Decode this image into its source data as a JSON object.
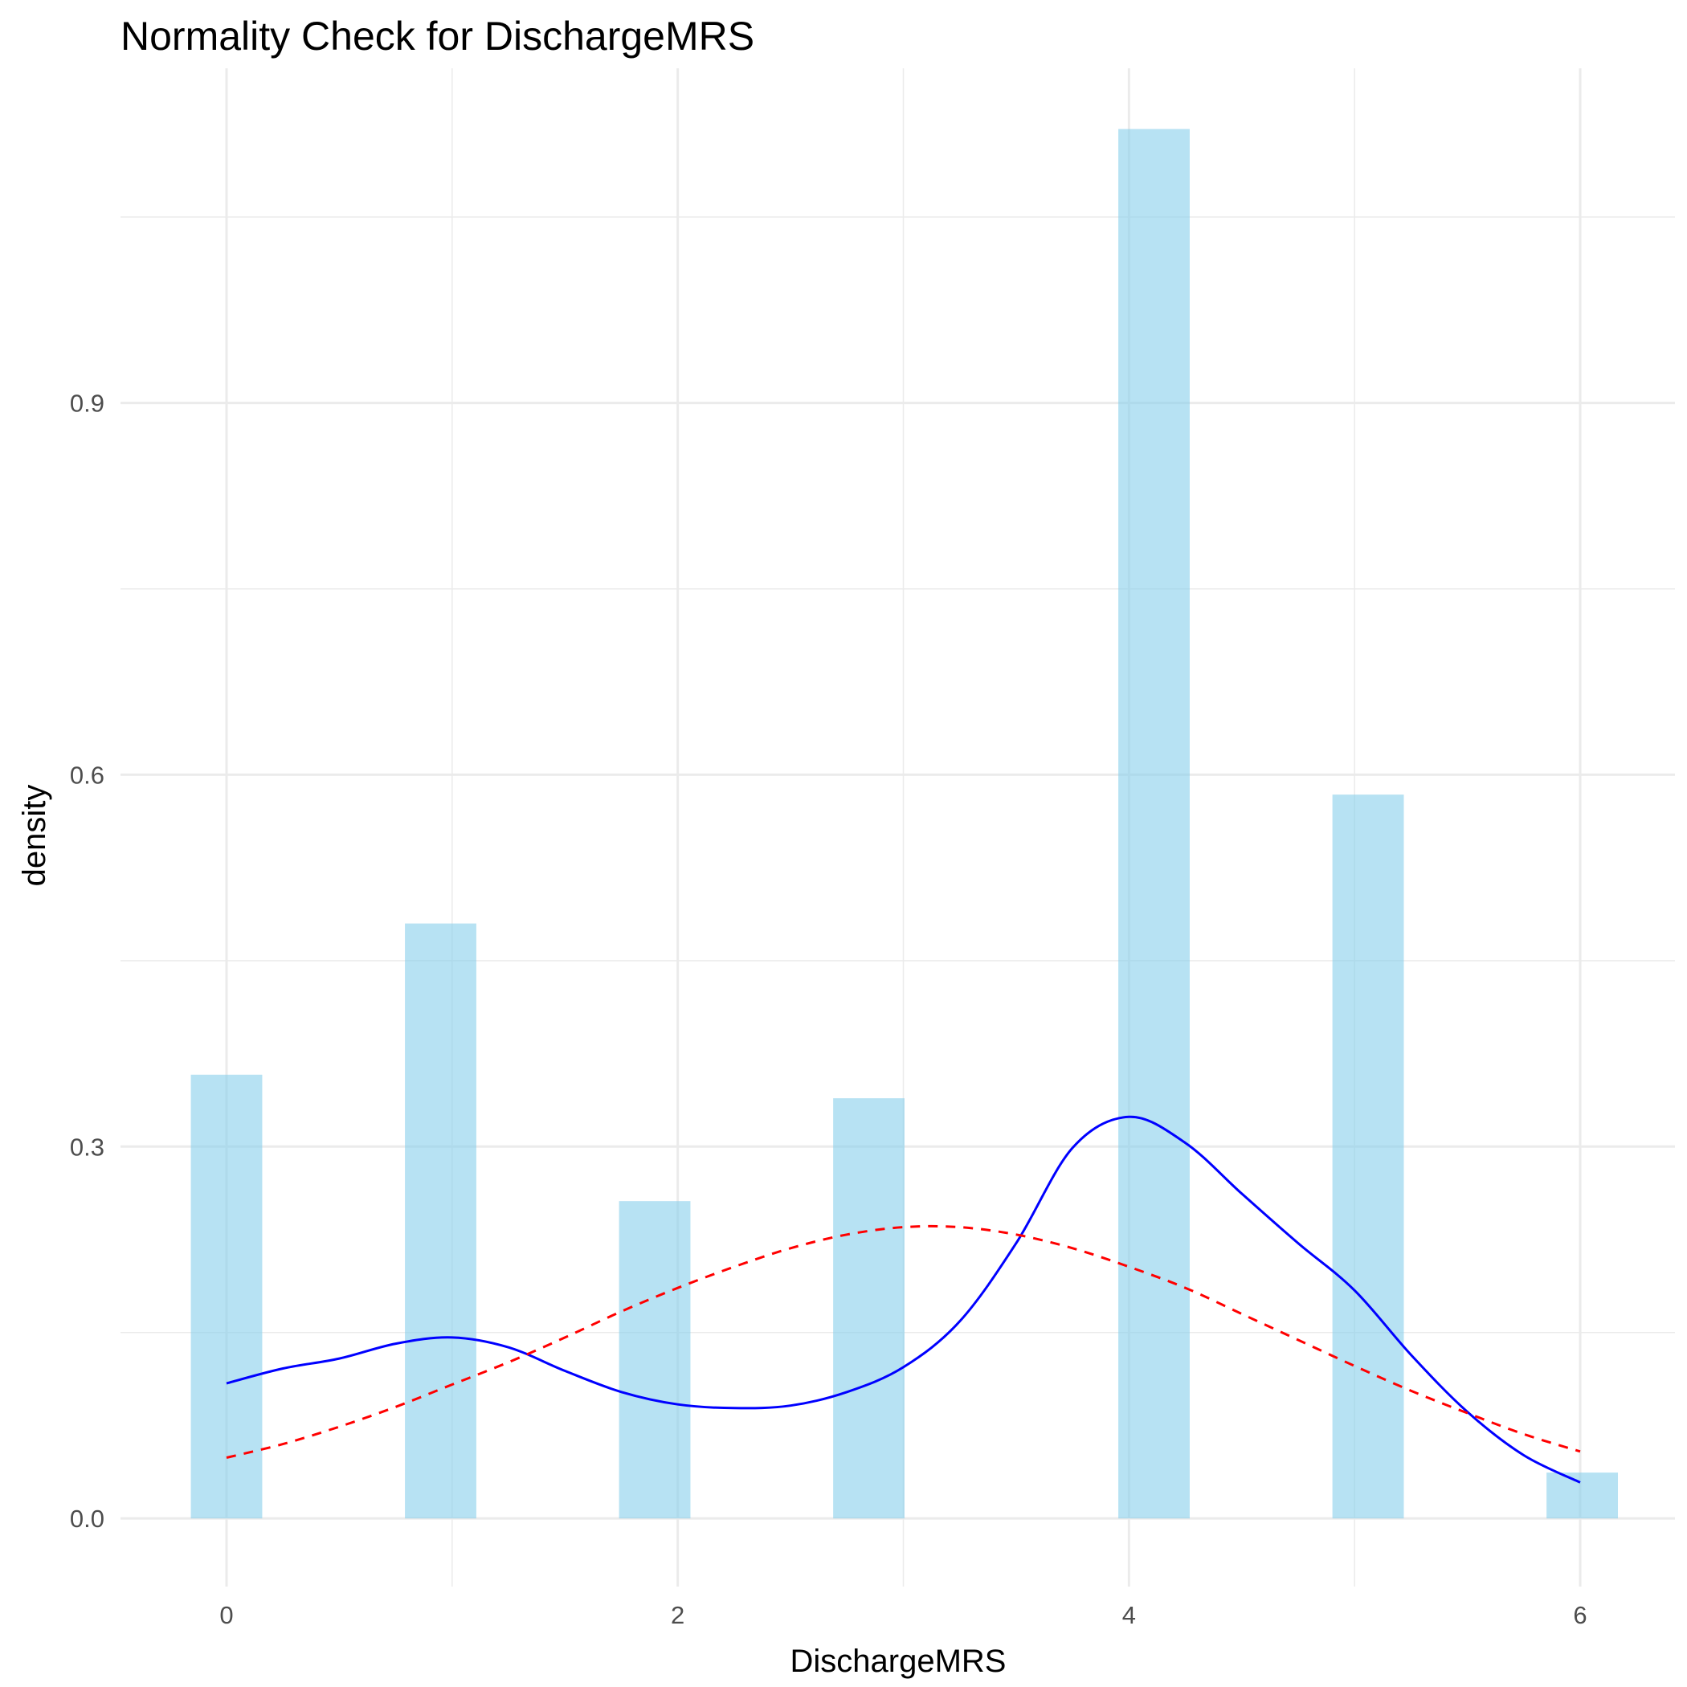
{
  "chart_data": {
    "type": "bar",
    "title": "Normality Check for DischargeMRS",
    "xlabel": "DischargeMRS",
    "ylabel": "density",
    "xlim": [
      -0.47,
      6.42
    ],
    "ylim": [
      -0.055,
      1.17
    ],
    "x_ticks": [
      0,
      2,
      4,
      6
    ],
    "x_tick_labels": [
      "0",
      "2",
      "4",
      "6"
    ],
    "y_ticks": [
      0.0,
      0.3,
      0.6,
      0.9
    ],
    "y_tick_labels": [
      "0.0",
      "0.3",
      "0.6",
      "0.9"
    ],
    "grid": true,
    "histogram": {
      "color": "#87CEEB",
      "opacity": 0.6,
      "bar_width": 0.3164,
      "bars": [
        {
          "x": 0.0,
          "value": 0.358
        },
        {
          "x": 0.949,
          "value": 0.48
        },
        {
          "x": 1.898,
          "value": 0.256
        },
        {
          "x": 2.847,
          "value": 0.339
        },
        {
          "x": 4.111,
          "value": 1.121
        },
        {
          "x": 5.06,
          "value": 0.584
        },
        {
          "x": 6.009,
          "value": 0.037
        }
      ]
    },
    "series": [
      {
        "kind": "kde",
        "color": "#0000FF",
        "dash": "solid",
        "x": [
          0.0,
          0.25,
          0.5,
          0.75,
          1.0,
          1.25,
          1.5,
          1.75,
          2.0,
          2.25,
          2.5,
          2.75,
          3.0,
          3.25,
          3.5,
          3.75,
          4.0,
          4.25,
          4.5,
          4.75,
          5.0,
          5.25,
          5.5,
          5.75,
          6.0
        ],
        "y": [
          0.109,
          0.121,
          0.129,
          0.141,
          0.146,
          0.138,
          0.119,
          0.102,
          0.092,
          0.089,
          0.091,
          0.102,
          0.122,
          0.159,
          0.222,
          0.299,
          0.324,
          0.303,
          0.262,
          0.222,
          0.184,
          0.132,
          0.086,
          0.051,
          0.029
        ]
      },
      {
        "kind": "normal",
        "color": "#FF0000",
        "dash": "dashed",
        "x": [
          0.0,
          0.25,
          0.5,
          0.75,
          1.0,
          1.25,
          1.5,
          1.75,
          2.0,
          2.25,
          2.5,
          2.75,
          3.0,
          3.25,
          3.5,
          3.75,
          4.0,
          4.25,
          4.5,
          4.75,
          5.0,
          5.25,
          5.5,
          5.75,
          6.0
        ],
        "y": [
          0.049,
          0.06,
          0.074,
          0.09,
          0.108,
          0.126,
          0.146,
          0.167,
          0.186,
          0.203,
          0.218,
          0.229,
          0.235,
          0.235,
          0.229,
          0.218,
          0.203,
          0.186,
          0.165,
          0.144,
          0.123,
          0.103,
          0.085,
          0.068,
          0.054
        ]
      }
    ]
  }
}
